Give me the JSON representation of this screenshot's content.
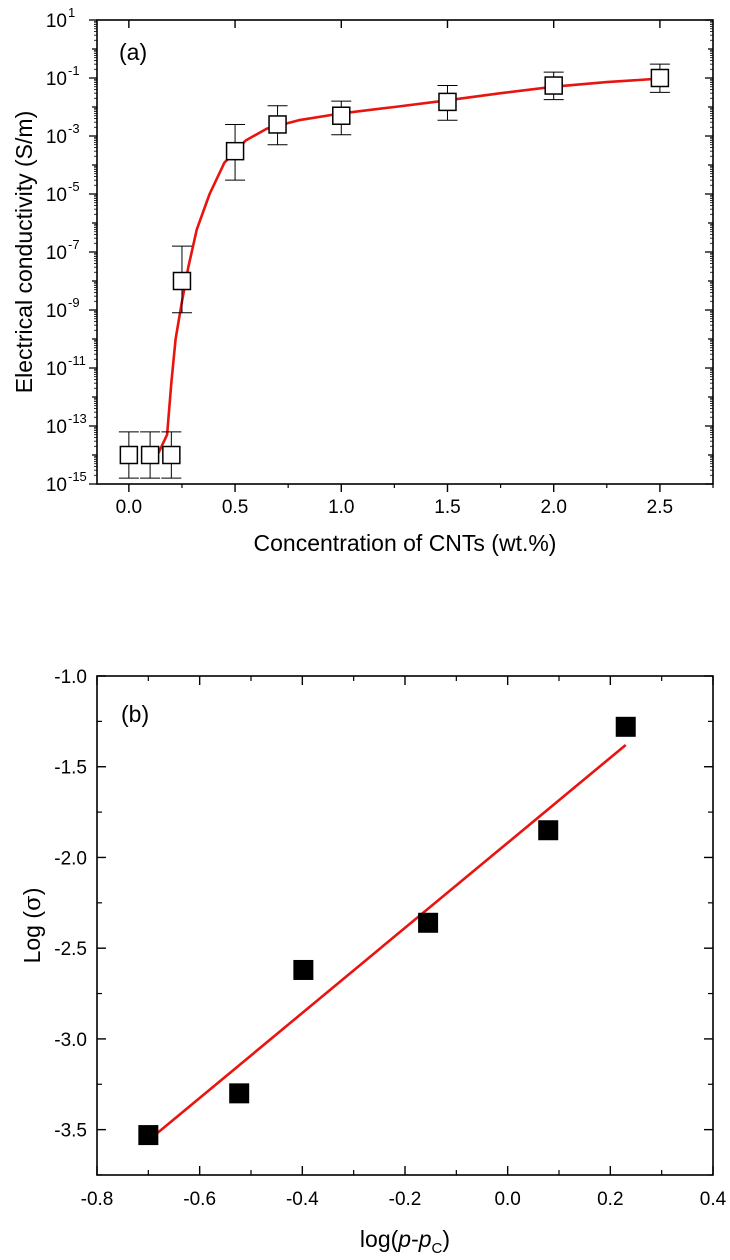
{
  "chart_data": [
    {
      "type": "scatter",
      "panel_label": "(a)",
      "xlabel": "Concentration of CNTs (wt.%)",
      "ylabel": "Electrical conductivity (S/m)",
      "xlim": [
        -0.15,
        2.75
      ],
      "ylim_log10": [
        -15,
        1
      ],
      "y_scale": "log",
      "x_ticks": [
        "0.0",
        "0.5",
        "1.0",
        "1.5",
        "2.0",
        "2.5"
      ],
      "x_tick_values": [
        0.0,
        0.5,
        1.0,
        1.5,
        2.0,
        2.5
      ],
      "y_tick_exponents": [
        1,
        -1,
        -3,
        -5,
        -7,
        -9,
        -11,
        -13,
        -15
      ],
      "y_tick_base": "10",
      "grid": false,
      "series": [
        {
          "marker": "open-square",
          "x": [
            0.0,
            0.1,
            0.2,
            0.25,
            0.5,
            0.7,
            1.0,
            1.5,
            2.0,
            2.5
          ],
          "y": [
            1e-14,
            1e-14,
            1e-14,
            1e-08,
            0.0003,
            0.0025,
            0.005,
            0.015,
            0.055,
            0.1
          ],
          "y_err_low": [
            1.6e-15,
            1.6e-15,
            1.6e-15,
            8e-10,
            3e-05,
            0.0005,
            0.0011,
            0.0035,
            0.018,
            0.032
          ],
          "y_err_high": [
            6.3e-14,
            6.3e-14,
            6.3e-14,
            1.6e-07,
            0.0025,
            0.011,
            0.016,
            0.055,
            0.16,
            0.3
          ]
        },
        {
          "type": "line",
          "color": "#e8140f",
          "x": [
            0.1,
            0.14,
            0.18,
            0.2,
            0.22,
            0.25,
            0.28,
            0.32,
            0.38,
            0.45,
            0.55,
            0.65,
            0.8,
            1.0,
            1.25,
            1.5,
            1.75,
            2.0,
            2.25,
            2.5
          ],
          "y": [
            1e-14,
            1.2e-14,
            5e-14,
            3e-12,
            1e-10,
            2e-09,
            3e-08,
            6e-07,
            1e-05,
            0.00012,
            0.0007,
            0.0018,
            0.0035,
            0.006,
            0.01,
            0.017,
            0.03,
            0.05,
            0.072,
            0.095
          ]
        }
      ]
    },
    {
      "type": "scatter",
      "panel_label": "(b)",
      "xlabel_parts": [
        "log(",
        "p",
        "-",
        "p",
        "C",
        ")"
      ],
      "ylabel_parts": [
        "Log (",
        "σ",
        ")"
      ],
      "xlim": [
        -0.8,
        0.4
      ],
      "ylim": [
        -3.75,
        -1.0
      ],
      "x_ticks": [
        "-0.8",
        "-0.6",
        "-0.4",
        "-0.2",
        "0.0",
        "0.2",
        "0.4"
      ],
      "x_tick_values": [
        -0.8,
        -0.6,
        -0.4,
        -0.2,
        0.0,
        0.2,
        0.4
      ],
      "y_ticks": [
        "-1.0",
        "-1.5",
        "-2.0",
        "-2.5",
        "-3.0",
        "-3.5"
      ],
      "y_tick_values": [
        -1.0,
        -1.5,
        -2.0,
        -2.5,
        -3.0,
        -3.5
      ],
      "grid": false,
      "series": [
        {
          "marker": "filled-square",
          "x": [
            -0.7,
            -0.523,
            -0.398,
            -0.155,
            0.079,
            0.23
          ],
          "y": [
            -3.53,
            -3.3,
            -2.62,
            -2.36,
            -1.85,
            -1.28
          ]
        },
        {
          "type": "line",
          "color": "#e8140f",
          "x": [
            -0.7,
            0.23
          ],
          "y": [
            -3.56,
            -1.38
          ]
        }
      ]
    }
  ]
}
